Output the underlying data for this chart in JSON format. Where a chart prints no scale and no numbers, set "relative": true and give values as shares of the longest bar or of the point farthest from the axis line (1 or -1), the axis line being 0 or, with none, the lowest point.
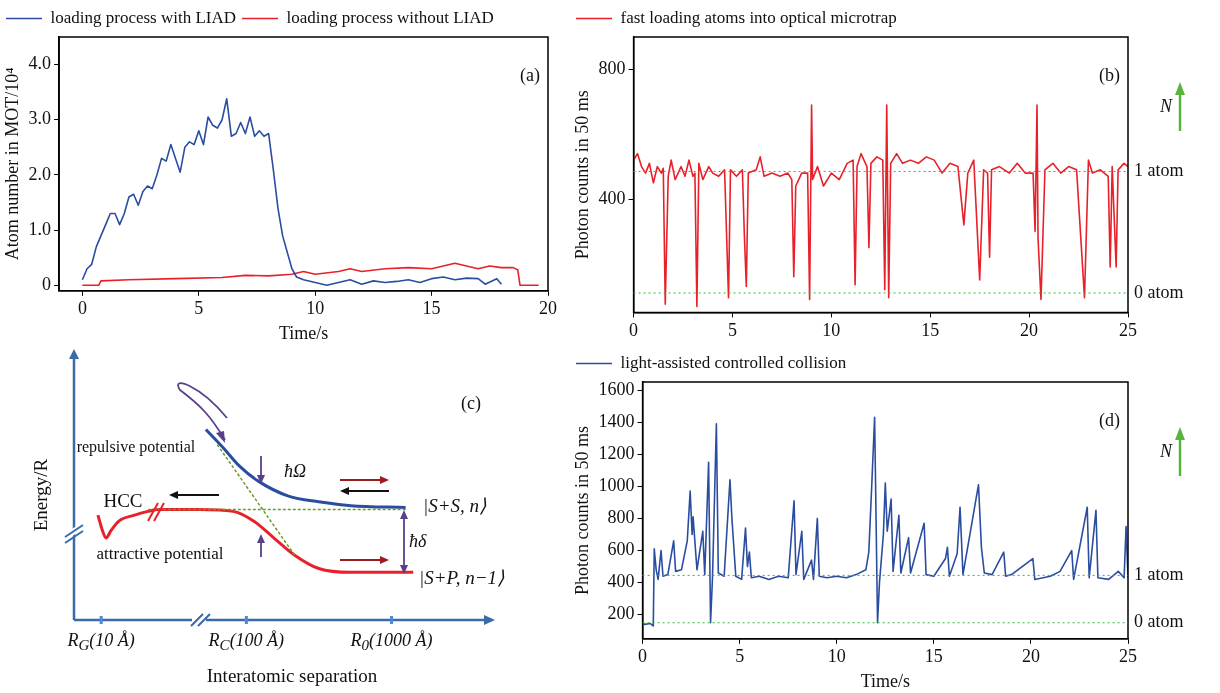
{
  "chart_data": [
    {
      "type": "line",
      "xlabel": "Time/s",
      "ylabel": "Atom number in MOT/10⁴",
      "xlim": [
        -1,
        20
      ],
      "xticks": [
        0,
        5,
        10,
        15,
        20
      ],
      "ylim": [
        -0.1,
        4.5
      ],
      "yticks": [
        {
          "value": 0,
          "label": "0"
        },
        {
          "value": 1,
          "label": "1.0"
        },
        {
          "value": 2,
          "label": "2.0"
        },
        {
          "value": 3,
          "label": "3.0"
        },
        {
          "value": 4,
          "label": "4.0"
        }
      ],
      "legend": "top left",
      "annotations": [
        "(a)"
      ],
      "series": [
        {
          "name": "loading process with LIAD",
          "color": "#2b4da0",
          "x": [
            0,
            0.2,
            0.4,
            0.6,
            0.8,
            1.0,
            1.2,
            1.4,
            1.6,
            1.8,
            2.0,
            2.2,
            2.4,
            2.6,
            2.8,
            3.0,
            3.2,
            3.4,
            3.6,
            3.8,
            4.0,
            4.2,
            4.4,
            4.6,
            4.8,
            5.0,
            5.2,
            5.4,
            5.6,
            5.8,
            6.0,
            6.2,
            6.4,
            6.6,
            6.8,
            7.0,
            7.2,
            7.4,
            7.6,
            7.8,
            8.0,
            8.2,
            8.4,
            8.6,
            8.8,
            9.0,
            9.2,
            9.5,
            10,
            10.5,
            11,
            11.5,
            12,
            12.5,
            13,
            13.5,
            14,
            14.5,
            15,
            15.5,
            16,
            16.5,
            17,
            17.3,
            17.8,
            18
          ],
          "values": [
            0.1,
            0.3,
            0.38,
            0.7,
            0.9,
            1.1,
            1.3,
            1.3,
            1.1,
            1.3,
            1.6,
            1.65,
            1.45,
            1.7,
            1.8,
            1.75,
            2.0,
            2.3,
            2.25,
            2.55,
            2.3,
            2.05,
            2.5,
            2.6,
            2.55,
            2.8,
            2.55,
            3.05,
            2.9,
            2.85,
            3.0,
            3.38,
            2.7,
            2.75,
            2.95,
            2.75,
            3.05,
            2.7,
            2.8,
            2.7,
            2.75,
            2.1,
            1.4,
            0.9,
            0.6,
            0.3,
            0.15,
            0.1,
            0.05,
            0.0,
            0.05,
            0.1,
            0.02,
            0.08,
            0.05,
            0.07,
            0.1,
            0.05,
            0.12,
            0.15,
            0.1,
            0.13,
            0.12,
            0.02,
            0.12,
            0.02
          ]
        },
        {
          "name": "loading process without LIAD",
          "color": "#e8202a",
          "x": [
            0,
            0.7,
            0.8,
            2,
            4,
            6,
            7,
            8,
            9,
            9.5,
            10,
            11,
            11.5,
            12,
            13,
            14,
            15,
            15.5,
            16,
            16.5,
            17,
            17.5,
            18,
            18.5,
            18.7,
            18.8,
            19.6
          ],
          "values": [
            0,
            0,
            0.08,
            0.1,
            0.12,
            0.14,
            0.18,
            0.17,
            0.2,
            0.25,
            0.2,
            0.25,
            0.3,
            0.25,
            0.3,
            0.32,
            0.3,
            0.35,
            0.4,
            0.35,
            0.3,
            0.35,
            0.32,
            0.32,
            0.28,
            0,
            0
          ]
        }
      ]
    },
    {
      "type": "line",
      "ylabel": "Photon counts in 50 ms",
      "xlim": [
        0,
        25
      ],
      "xticks": [
        0,
        5,
        10,
        15,
        20,
        25
      ],
      "ylim": [
        50,
        900
      ],
      "yticks": [
        400,
        800
      ],
      "legend": "top left",
      "annotations": [
        "(b)",
        "N"
      ],
      "ref_lines": [
        {
          "axis": "y",
          "value": 485,
          "label": "1 atom",
          "color": "#33bb33",
          "line_style": "dotted"
        },
        {
          "axis": "y",
          "value": 110,
          "label": "0 atom",
          "color": "#33bb33",
          "line_style": "dotted"
        }
      ],
      "series": [
        {
          "name": "fast loading atoms into optical microtrap",
          "color": "#e8202a",
          "x": [
            0,
            0.2,
            0.4,
            0.6,
            0.8,
            1.0,
            1.2,
            1.4,
            1.5,
            1.6,
            1.75,
            1.9,
            2.1,
            2.4,
            2.6,
            2.8,
            3.0,
            3.1,
            3.2,
            3.3,
            3.5,
            3.8,
            4.0,
            4.3,
            4.6,
            4.8,
            4.9,
            5.2,
            5.5,
            5.6,
            5.7,
            5.8,
            6.2,
            6.4,
            6.6,
            7.0,
            7.4,
            7.8,
            8.0,
            8.1,
            8.2,
            8.5,
            8.8,
            8.9,
            9.0,
            9.05,
            9.3,
            9.6,
            10.0,
            10.4,
            10.8,
            11.1,
            11.2,
            11.3,
            11.5,
            11.8,
            11.9,
            12.0,
            12.3,
            12.6,
            12.7,
            12.8,
            12.9,
            13.0,
            13.3,
            13.6,
            14.0,
            14.4,
            14.8,
            15.2,
            15.6,
            16.0,
            16.4,
            16.7,
            16.9,
            17.2,
            17.5,
            17.7,
            17.9,
            18.0,
            18.1,
            18.5,
            19.0,
            19.4,
            19.8,
            20.2,
            20.3,
            20.4,
            20.45,
            20.6,
            20.8,
            21.2,
            21.6,
            22.0,
            22.4,
            22.8,
            23.0,
            23.2,
            23.6,
            24.0,
            24.1,
            24.2,
            24.4,
            24.5,
            24.8,
            25
          ],
          "values": [
            520,
            540,
            500,
            480,
            510,
            450,
            500,
            480,
            495,
            75,
            470,
            520,
            460,
            500,
            470,
            520,
            470,
            480,
            68,
            510,
            460,
            500,
            480,
            470,
            490,
            95,
            490,
            470,
            490,
            290,
            130,
            480,
            490,
            530,
            470,
            480,
            470,
            480,
            460,
            160,
            440,
            480,
            480,
            90,
            690,
            460,
            500,
            440,
            480,
            460,
            510,
            520,
            135,
            500,
            540,
            500,
            250,
            510,
            530,
            520,
            120,
            690,
            95,
            510,
            540,
            510,
            520,
            510,
            530,
            520,
            480,
            510,
            500,
            320,
            480,
            520,
            150,
            490,
            480,
            220,
            490,
            500,
            480,
            510,
            480,
            480,
            300,
            690,
            280,
            90,
            490,
            510,
            480,
            500,
            490,
            95,
            520,
            480,
            490,
            470,
            190,
            500,
            190,
            490,
            510,
            500
          ]
        }
      ]
    },
    {
      "type": "line",
      "relative": true,
      "log": "x",
      "xlabel": "Interatomic separation",
      "ylabel": "Energy/R",
      "xlim": [
        6.5,
        4400
      ],
      "xticks": [
        {
          "value": 10,
          "label": "R$_{G}$(10 Å)"
        },
        {
          "value": 100,
          "label": "R$_{C}$(100 Å)"
        },
        {
          "value": 1000,
          "label": "R$_{0}$(1000 Å)"
        }
      ],
      "annotations": [
        "(c)",
        "repulsive potential",
        "attractive potential",
        "HCC",
        "ħΩ",
        "ħδ",
        "|S+S, n⟩",
        "|S+P, n−1⟩"
      ],
      "series": [
        {
          "color": "#2b4da0",
          "x": [
            52.6,
            70,
            89,
            120,
            195,
            315,
            525,
            1250
          ],
          "values": [
            1.0,
            0.9,
            0.81,
            0.73,
            0.65,
            0.62,
            0.6,
            0.59
          ]
        },
        {
          "color": "#e8202a",
          "x": [
            9.5,
            10.2,
            10.8,
            11.7,
            13.3,
            17,
            21,
            25,
            47,
            81,
            112,
            155,
            215,
            315,
            525,
            1410
          ],
          "values": [
            0.55,
            0.47,
            0.43,
            0.47,
            0.52,
            0.55,
            0.57,
            0.58,
            0.58,
            0.57,
            0.52,
            0.43,
            0.34,
            0.27,
            0.25,
            0.25
          ]
        },
        {
          "color": "#6a9a2a",
          "line_style": "dashed",
          "x": [
            21,
            1250
          ],
          "values": [
            0.58,
            0.58
          ]
        },
        {
          "color": "#6a9a2a",
          "line_style": "dashed",
          "x": [
            63,
            215
          ],
          "values": [
            0.92,
            0.34
          ]
        }
      ]
    },
    {
      "type": "line",
      "xlabel": "Time/s",
      "ylabel": "Photon counts in 50 ms",
      "xlim": [
        0,
        25
      ],
      "xticks": [
        0,
        5,
        10,
        15,
        20,
        25
      ],
      "ylim": [
        50,
        1650
      ],
      "yticks": [
        200,
        400,
        600,
        800,
        1000,
        1200,
        1400,
        1600
      ],
      "legend": "top left",
      "annotations": [
        "(d)",
        "N"
      ],
      "ref_lines": [
        {
          "axis": "y",
          "value": 445,
          "label": "1 atom",
          "color": "#33bb33",
          "line_style": "dotted"
        },
        {
          "axis": "y",
          "value": 150,
          "label": "0 atom",
          "color": "#33bb33",
          "line_style": "dotted"
        }
      ],
      "series": [
        {
          "name": "light-assisted controlled collision",
          "color": "#2b4da0",
          "x": [
            0,
            0.1,
            0.4,
            0.55,
            0.6,
            0.7,
            0.8,
            0.95,
            1.05,
            1.3,
            1.6,
            1.7,
            2.0,
            2.3,
            2.45,
            2.55,
            2.6,
            2.8,
            3.1,
            3.2,
            3.4,
            3.5,
            3.6,
            3.8,
            3.9,
            4.2,
            4.5,
            4.6,
            4.8,
            5.1,
            5.3,
            5.4,
            5.5,
            5.6,
            6.0,
            6.5,
            7.0,
            7.5,
            7.8,
            7.9,
            8.2,
            8.3,
            8.7,
            8.8,
            9.0,
            9.1,
            9.5,
            10,
            10.5,
            11,
            11.5,
            11.65,
            11.8,
            11.95,
            12.1,
            12.2,
            12.4,
            12.5,
            12.6,
            12.8,
            12.9,
            13.2,
            13.3,
            13.7,
            13.8,
            14.5,
            14.6,
            15.0,
            15.6,
            15.7,
            15.8,
            16.2,
            16.35,
            16.5,
            17.3,
            17.45,
            17.6,
            18.0,
            18.6,
            18.7,
            19.0,
            20.1,
            20.2,
            21.0,
            21.5,
            22.1,
            22.2,
            22.9,
            23.0,
            23.35,
            23.45,
            24.0,
            24.5,
            24.8,
            24.9,
            25
          ],
          "values": [
            150,
            140,
            145,
            130,
            610,
            480,
            420,
            600,
            440,
            450,
            660,
            470,
            480,
            660,
            970,
            700,
            810,
            480,
            720,
            450,
            1150,
            150,
            430,
            1390,
            460,
            440,
            1040,
            800,
            440,
            420,
            740,
            500,
            590,
            430,
            440,
            420,
            440,
            430,
            910,
            450,
            720,
            420,
            540,
            420,
            800,
            440,
            430,
            440,
            430,
            450,
            480,
            590,
            1000,
            1430,
            150,
            400,
            700,
            1020,
            720,
            920,
            470,
            820,
            460,
            680,
            460,
            770,
            450,
            440,
            550,
            620,
            440,
            580,
            870,
            450,
            1010,
            620,
            460,
            450,
            590,
            440,
            450,
            550,
            420,
            440,
            470,
            600,
            420,
            870,
            430,
            850,
            430,
            420,
            470,
            430,
            750,
            430
          ]
        }
      ]
    }
  ]
}
